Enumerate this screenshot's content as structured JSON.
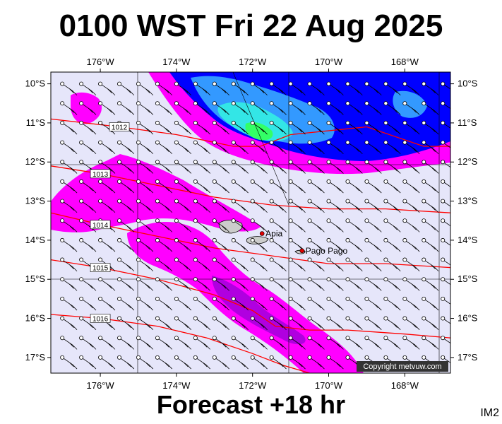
{
  "title": "0100 WST Fri 22 Aug 2025",
  "subtitle": "Forecast +18 hr",
  "code": "IM2",
  "copyright": "Copyright metvuw.com",
  "axes": {
    "lon_labels": [
      "176°W",
      "174°W",
      "172°W",
      "170°W",
      "168°W"
    ],
    "lon_values": [
      -176,
      -174,
      -172,
      -170,
      -168
    ],
    "lat_labels": [
      "10°S",
      "11°S",
      "12°S",
      "13°S",
      "14°S",
      "15°S",
      "16°S",
      "17°S"
    ],
    "lat_values": [
      -10,
      -11,
      -12,
      -13,
      -14,
      -15,
      -16,
      -17
    ],
    "lon_range": [
      -177.3,
      -166.8
    ],
    "lat_range": [
      -9.7,
      -17.4
    ]
  },
  "isobars": [
    {
      "label": "1012",
      "points": [
        [
          -177.3,
          -10.9
        ],
        [
          -175.5,
          -11.1
        ],
        [
          -174,
          -11.3
        ],
        [
          -172.5,
          -11.6
        ],
        [
          -171.8,
          -11.6
        ],
        [
          -171,
          -11.3
        ],
        [
          -169,
          -11.1
        ],
        [
          -167.5,
          -11.6
        ],
        [
          -166.8,
          -11.6
        ]
      ]
    },
    {
      "label": "1013",
      "points": [
        [
          -177.3,
          -12.1
        ],
        [
          -176,
          -12.3
        ],
        [
          -174.5,
          -12.6
        ],
        [
          -173,
          -12.9
        ],
        [
          -171.5,
          -13.1
        ],
        [
          -170,
          -13.2
        ],
        [
          -168.5,
          -13.2
        ],
        [
          -166.8,
          -13.3
        ]
      ]
    },
    {
      "label": "1014",
      "points": [
        [
          -177.3,
          -13.3
        ],
        [
          -176,
          -13.6
        ],
        [
          -174.5,
          -13.9
        ],
        [
          -173,
          -14.2
        ],
        [
          -171.5,
          -14.4
        ],
        [
          -170,
          -14.6
        ],
        [
          -168.5,
          -14.6
        ],
        [
          -166.8,
          -14.7
        ]
      ]
    },
    {
      "label": "1015",
      "points": [
        [
          -177.3,
          -14.5
        ],
        [
          -176,
          -14.7
        ],
        [
          -174.5,
          -15.0
        ],
        [
          -173,
          -15.4
        ],
        [
          -172,
          -15.8
        ],
        [
          -171.4,
          -16.2
        ],
        [
          -170.5,
          -16.3
        ],
        [
          -169.5,
          -16.3
        ],
        [
          -168,
          -16.4
        ],
        [
          -166.8,
          -16.5
        ]
      ]
    },
    {
      "label": "1016",
      "points": [
        [
          -177.3,
          -15.9
        ],
        [
          -176,
          -16.0
        ],
        [
          -174.5,
          -16.2
        ],
        [
          -173.2,
          -16.5
        ],
        [
          -172,
          -16.9
        ],
        [
          -171.2,
          -17.2
        ],
        [
          -170.5,
          -17.4
        ]
      ]
    }
  ],
  "cities": [
    {
      "name": "Apia",
      "lon": -171.75,
      "lat": -13.83
    },
    {
      "name": "Pago Pago",
      "lon": -170.7,
      "lat": -14.27
    }
  ],
  "colors": {
    "ocean": "#e6e6fa",
    "magenta": "#ff00ff",
    "purple": "#b000e0",
    "blue": "#0000ff",
    "lightblue": "#3399ff",
    "cyan": "#33e6e6",
    "green": "#33ff66",
    "isobar": "#ff0000",
    "land": "#cccccc"
  }
}
